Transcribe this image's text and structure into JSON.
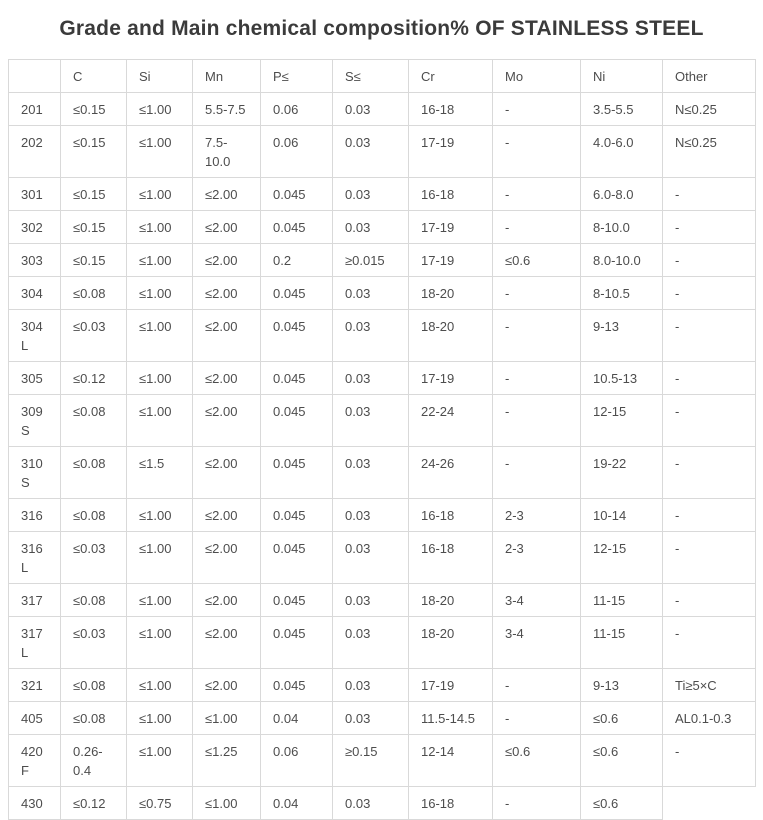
{
  "title": "Grade and Main chemical composition% OF STAINLESS STEEL",
  "colors": {
    "border": "#d9d9d9",
    "text": "#4d4d4d",
    "title": "#3b3b3b",
    "background": "#ffffff"
  },
  "table": {
    "columns": [
      "",
      "C",
      "Si",
      "Mn",
      "P≤",
      "S≤",
      "Cr",
      "Mo",
      "Ni",
      "Other"
    ],
    "rows": [
      {
        "grade": "201",
        "c": "≤0.15",
        "si": "≤1.00",
        "mn": "5.5-7.5",
        "p": "0.06",
        "s": "0.03",
        "cr": "16-18",
        "mo": "-",
        "ni": "3.5-5.5",
        "other": "N≤0.25"
      },
      {
        "grade": "202",
        "c": "≤0.15",
        "si": "≤1.00",
        "mn": "7.5-10.0",
        "p": "0.06",
        "s": "0.03",
        "cr": "17-19",
        "mo": "-",
        "ni": "4.0-6.0",
        "other": "N≤0.25"
      },
      {
        "grade": "301",
        "c": "≤0.15",
        "si": "≤1.00",
        "mn": "≤2.00",
        "p": "0.045",
        "s": "0.03",
        "cr": "16-18",
        "mo": "-",
        "ni": "6.0-8.0",
        "other": "-"
      },
      {
        "grade": "302",
        "c": "≤0.15",
        "si": "≤1.00",
        "mn": "≤2.00",
        "p": "0.045",
        "s": "0.03",
        "cr": "17-19",
        "mo": "-",
        "ni": "8-10.0",
        "other": "-"
      },
      {
        "grade": "303",
        "c": "≤0.15",
        "si": "≤1.00",
        "mn": "≤2.00",
        "p": "0.2",
        "s": "≥0.015",
        "cr": "17-19",
        "mo": "≤0.6",
        "ni": "8.0-10.0",
        "other": "-"
      },
      {
        "grade": "304",
        "c": "≤0.08",
        "si": "≤1.00",
        "mn": "≤2.00",
        "p": "0.045",
        "s": "0.03",
        "cr": "18-20",
        "mo": "-",
        "ni": "8-10.5",
        "other": "-"
      },
      {
        "grade": "304L",
        "c": "≤0.03",
        "si": "≤1.00",
        "mn": "≤2.00",
        "p": "0.045",
        "s": "0.03",
        "cr": "18-20",
        "mo": "-",
        "ni": "9-13",
        "other": "-"
      },
      {
        "grade": "305",
        "c": "≤0.12",
        "si": "≤1.00",
        "mn": "≤2.00",
        "p": "0.045",
        "s": "0.03",
        "cr": "17-19",
        "mo": "-",
        "ni": "10.5-13",
        "other": "-"
      },
      {
        "grade": "309S",
        "c": "≤0.08",
        "si": "≤1.00",
        "mn": "≤2.00",
        "p": "0.045",
        "s": "0.03",
        "cr": "22-24",
        "mo": "-",
        "ni": "12-15",
        "other": "-"
      },
      {
        "grade": "310S",
        "c": "≤0.08",
        "si": "≤1.5",
        "mn": "≤2.00",
        "p": "0.045",
        "s": "0.03",
        "cr": "24-26",
        "mo": "-",
        "ni": "19-22",
        "other": "-"
      },
      {
        "grade": "316",
        "c": "≤0.08",
        "si": "≤1.00",
        "mn": "≤2.00",
        "p": "0.045",
        "s": "0.03",
        "cr": "16-18",
        "mo": "2-3",
        "ni": "10-14",
        "other": "-"
      },
      {
        "grade": "316L",
        "c": "≤0.03",
        "si": "≤1.00",
        "mn": "≤2.00",
        "p": "0.045",
        "s": "0.03",
        "cr": "16-18",
        "mo": "2-3",
        "ni": "12-15",
        "other": "-"
      },
      {
        "grade": "317",
        "c": "≤0.08",
        "si": "≤1.00",
        "mn": "≤2.00",
        "p": "0.045",
        "s": "0.03",
        "cr": "18-20",
        "mo": "3-4",
        "ni": "11-15",
        "other": "-"
      },
      {
        "grade": "317L",
        "c": "≤0.03",
        "si": "≤1.00",
        "mn": "≤2.00",
        "p": "0.045",
        "s": "0.03",
        "cr": "18-20",
        "mo": "3-4",
        "ni": "11-15",
        "other": "-"
      },
      {
        "grade": "321",
        "c": "≤0.08",
        "si": "≤1.00",
        "mn": "≤2.00",
        "p": "0.045",
        "s": "0.03",
        "cr": "17-19",
        "mo": "-",
        "ni": "9-13",
        "other": "Ti≥5×C"
      },
      {
        "grade": "405",
        "c": "≤0.08",
        "si": "≤1.00",
        "mn": "≤1.00",
        "p": "0.04",
        "s": "0.03",
        "cr": "11.5-14.5",
        "mo": "-",
        "ni": "≤0.6",
        "other": "AL0.1-0.3"
      },
      {
        "grade": "420F",
        "c": "0.26-0.4",
        "si": "≤1.00",
        "mn": "≤1.25",
        "p": "0.06",
        "s": "≥0.15",
        "cr": "12-14",
        "mo": "≤0.6",
        "ni": "≤0.6",
        "other": "-"
      },
      {
        "grade": "430",
        "c": "≤0.12",
        "si": "≤0.75",
        "mn": "≤1.00",
        "p": "0.04",
        "s": "0.03",
        "cr": "16-18",
        "mo": "-",
        "ni": "≤0.6",
        "other": ""
      }
    ]
  }
}
